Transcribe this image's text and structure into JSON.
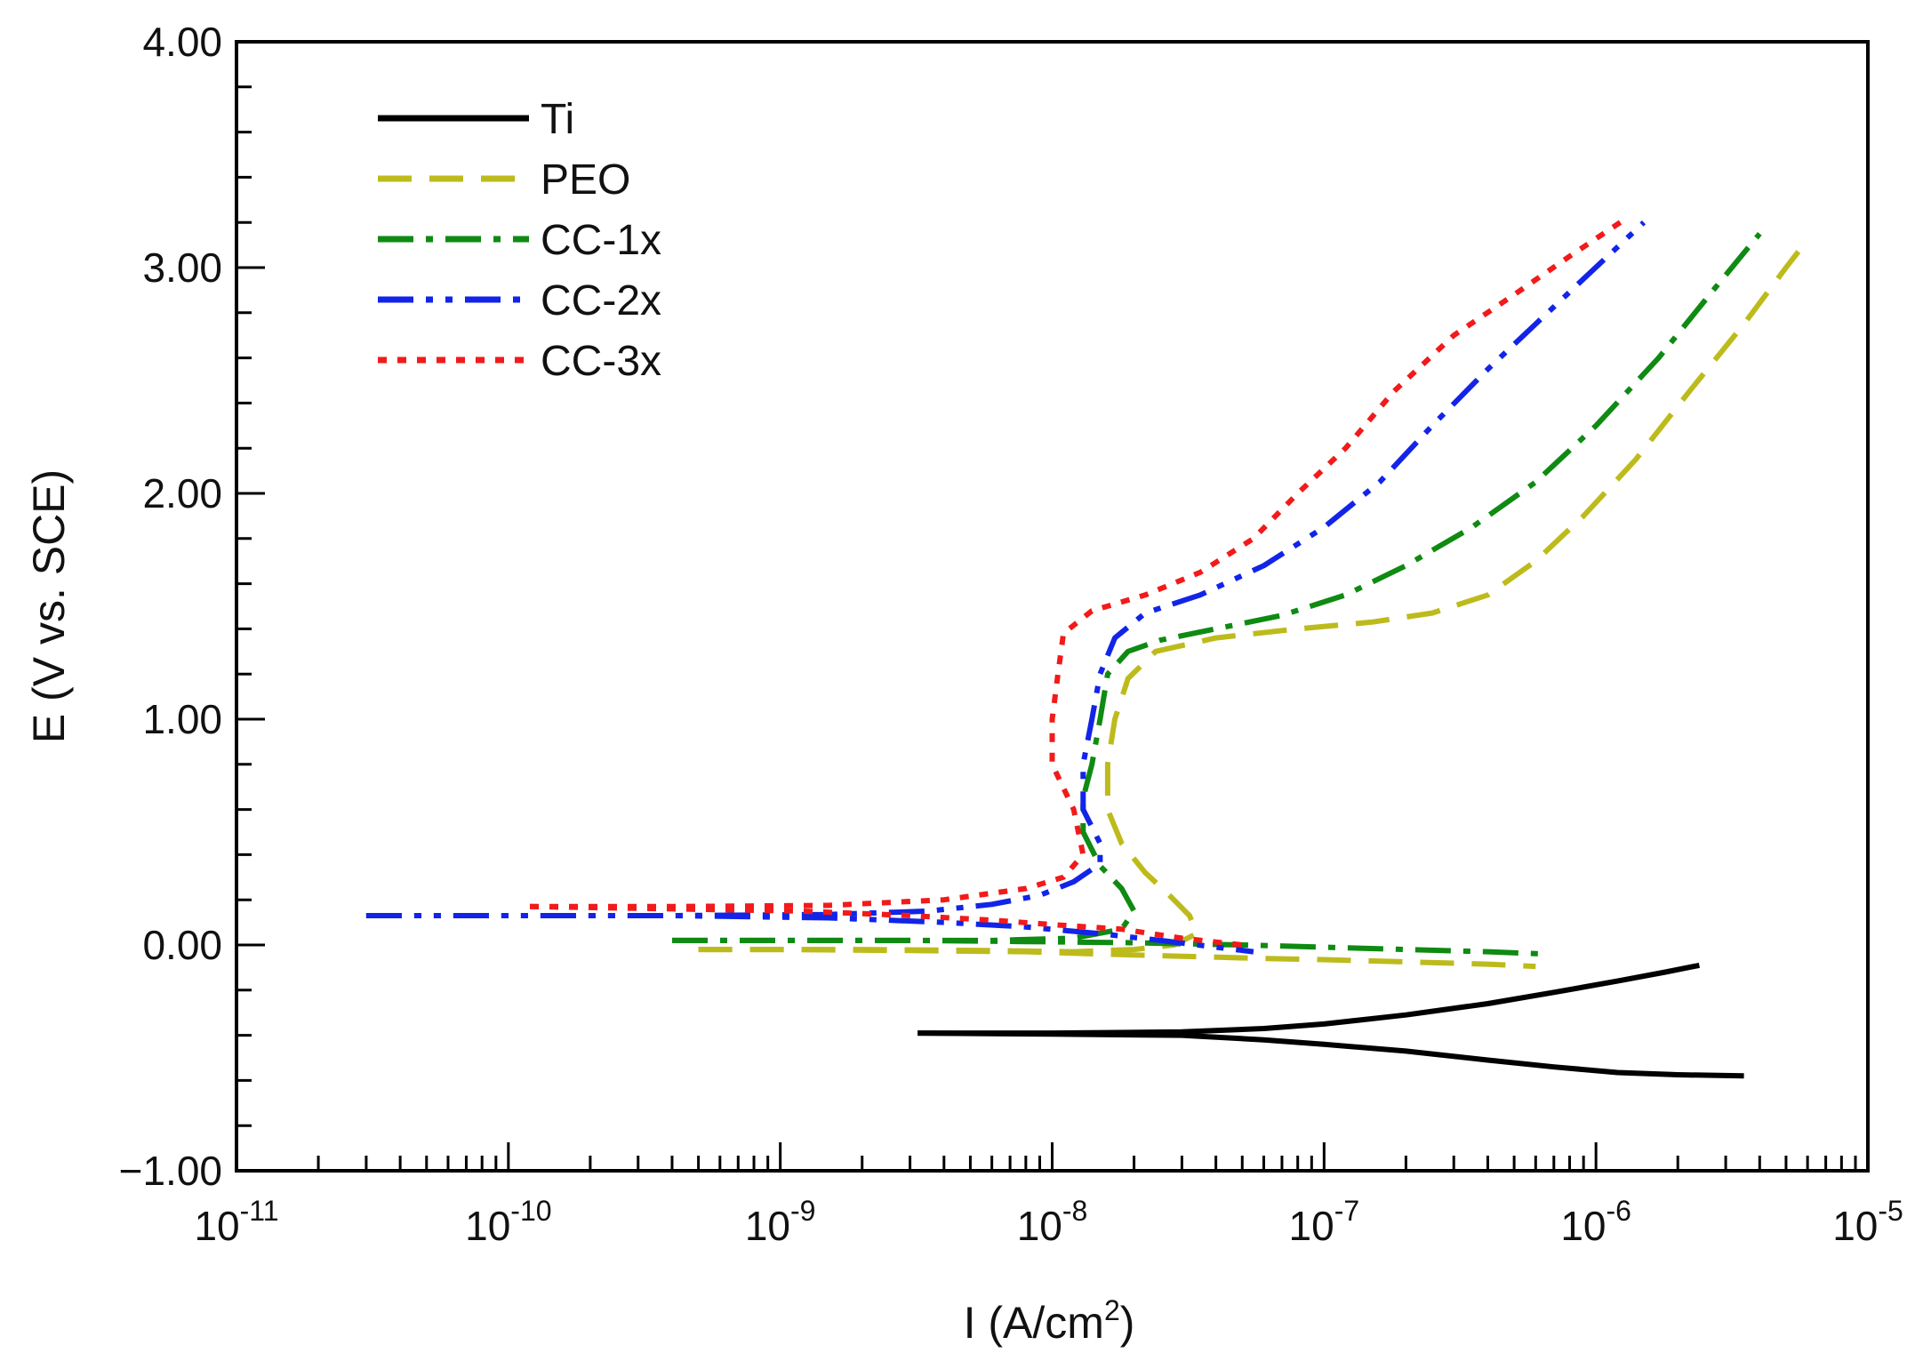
{
  "chart_data": {
    "type": "line",
    "xscale": "log",
    "xlabel": "I (A/cm",
    "xlabel_sup": "2",
    "xlabel_tail": ")",
    "ylabel": "E (V vs. SCE)",
    "xlim": [
      1e-11,
      1e-05
    ],
    "ylim": [
      -1.0,
      4.0
    ],
    "x_ticks": [
      {
        "value": 1e-11,
        "base": "10",
        "exp": "-11"
      },
      {
        "value": 1e-10,
        "base": "10",
        "exp": "-10"
      },
      {
        "value": 1e-09,
        "base": "10",
        "exp": "-9"
      },
      {
        "value": 1e-08,
        "base": "10",
        "exp": "-8"
      },
      {
        "value": 1e-07,
        "base": "10",
        "exp": "-7"
      },
      {
        "value": 1e-06,
        "base": "10",
        "exp": "-6"
      },
      {
        "value": 1e-05,
        "base": "10",
        "exp": "-5"
      }
    ],
    "y_ticks": [
      {
        "value": 4.0,
        "label": "4.00"
      },
      {
        "value": 3.0,
        "label": "3.00"
      },
      {
        "value": 2.0,
        "label": "2.00"
      },
      {
        "value": 1.0,
        "label": "1.00"
      },
      {
        "value": 0.0,
        "label": "0.00"
      },
      {
        "value": -1.0,
        "label": "−1.00"
      }
    ],
    "grid": false,
    "legend_position": "top-left",
    "series": [
      {
        "name": "Ti",
        "color": "#000000",
        "dash": "solid",
        "points": [
          [
            3.2e-09,
            -0.39
          ],
          [
            1e-08,
            -0.39
          ],
          [
            3e-08,
            -0.385
          ],
          [
            6e-08,
            -0.37
          ],
          [
            1e-07,
            -0.35
          ],
          [
            2e-07,
            -0.31
          ],
          [
            4e-07,
            -0.26
          ],
          [
            7e-07,
            -0.21
          ],
          [
            1.2e-06,
            -0.16
          ],
          [
            1.8e-06,
            -0.12
          ],
          [
            2.4e-06,
            -0.09
          ],
          [
            2.4e-06,
            -0.09
          ],
          [
            1.8e-06,
            -0.12
          ]
        ],
        "branches": [
          [
            [
              3.2e-09,
              -0.39
            ],
            [
              1e-08,
              -0.39
            ],
            [
              3e-08,
              -0.385
            ],
            [
              6e-08,
              -0.37
            ],
            [
              1e-07,
              -0.35
            ],
            [
              2e-07,
              -0.31
            ],
            [
              4e-07,
              -0.26
            ],
            [
              7e-07,
              -0.21
            ],
            [
              1.2e-06,
              -0.16
            ],
            [
              1.8e-06,
              -0.12
            ],
            [
              2.4e-06,
              -0.09
            ]
          ],
          [
            [
              3.2e-09,
              -0.39
            ],
            [
              1e-08,
              -0.395
            ],
            [
              3e-08,
              -0.4
            ],
            [
              6e-08,
              -0.42
            ],
            [
              1e-07,
              -0.44
            ],
            [
              2e-07,
              -0.47
            ],
            [
              4e-07,
              -0.51
            ],
            [
              7e-07,
              -0.54
            ],
            [
              1.2e-06,
              -0.565
            ],
            [
              2e-06,
              -0.575
            ],
            [
              3.5e-06,
              -0.58
            ]
          ]
        ]
      },
      {
        "name": "PEO",
        "color": "#bdbb1c",
        "dash": "38 20",
        "branches": [
          [
            [
              5e-10,
              -0.02
            ],
            [
              1e-09,
              -0.02
            ],
            [
              3e-09,
              -0.025
            ],
            [
              8e-09,
              -0.03
            ],
            [
              1.5e-08,
              -0.04
            ],
            [
              3e-08,
              -0.05
            ],
            [
              6e-08,
              -0.06
            ],
            [
              1e-07,
              -0.065
            ],
            [
              2e-07,
              -0.075
            ],
            [
              4e-07,
              -0.085
            ],
            [
              6e-07,
              -0.095
            ]
          ],
          [
            [
              5e-10,
              -0.02
            ],
            [
              2e-09,
              -0.02
            ],
            [
              6e-09,
              -0.025
            ],
            [
              1.2e-08,
              -0.03
            ],
            [
              2e-08,
              -0.02
            ],
            [
              2.8e-08,
              0.0
            ],
            [
              3.4e-08,
              0.05
            ],
            [
              3.2e-08,
              0.13
            ],
            [
              2.7e-08,
              0.22
            ],
            [
              2.2e-08,
              0.32
            ],
            [
              1.8e-08,
              0.45
            ],
            [
              1.6e-08,
              0.6
            ],
            [
              1.6e-08,
              0.8
            ],
            [
              1.7e-08,
              1.0
            ],
            [
              1.9e-08,
              1.18
            ],
            [
              2.4e-08,
              1.3
            ],
            [
              4e-08,
              1.36
            ],
            [
              8e-08,
              1.4
            ],
            [
              1.5e-07,
              1.43
            ],
            [
              2.5e-07,
              1.47
            ],
            [
              4e-07,
              1.55
            ],
            [
              6e-07,
              1.7
            ],
            [
              9e-07,
              1.9
            ],
            [
              1.4e-06,
              2.15
            ],
            [
              2.2e-06,
              2.45
            ],
            [
              3.5e-06,
              2.75
            ],
            [
              5e-06,
              3.0
            ],
            [
              5.8e-06,
              3.1
            ]
          ]
        ]
      },
      {
        "name": "CC-1x",
        "color": "#0f8a12",
        "dash": "40 14 8 14",
        "branches": [
          [
            [
              4e-10,
              0.02
            ],
            [
              1e-09,
              0.02
            ],
            [
              3e-09,
              0.02
            ],
            [
              8e-09,
              0.015
            ],
            [
              2e-08,
              0.01
            ],
            [
              5e-08,
              0.0
            ],
            [
              1e-07,
              -0.01
            ],
            [
              2e-07,
              -0.02
            ],
            [
              4e-07,
              -0.03
            ],
            [
              6.5e-07,
              -0.04
            ]
          ],
          [
            [
              4e-10,
              0.02
            ],
            [
              2e-09,
              0.02
            ],
            [
              6e-09,
              0.02
            ],
            [
              1.2e-08,
              0.03
            ],
            [
              1.8e-08,
              0.07
            ],
            [
              2e-08,
              0.15
            ],
            [
              1.8e-08,
              0.25
            ],
            [
              1.5e-08,
              0.35
            ],
            [
              1.3e-08,
              0.5
            ],
            [
              1.3e-08,
              0.65
            ],
            [
              1.4e-08,
              0.8
            ],
            [
              1.5e-08,
              1.0
            ],
            [
              1.6e-08,
              1.2
            ],
            [
              1.9e-08,
              1.3
            ],
            [
              2.5e-08,
              1.35
            ],
            [
              4e-08,
              1.4
            ],
            [
              7e-08,
              1.46
            ],
            [
              1.2e-07,
              1.55
            ],
            [
              2e-07,
              1.68
            ],
            [
              3.5e-07,
              1.85
            ],
            [
              6e-07,
              2.05
            ],
            [
              1e-06,
              2.3
            ],
            [
              1.7e-06,
              2.6
            ],
            [
              2.7e-06,
              2.9
            ],
            [
              4e-06,
              3.15
            ]
          ]
        ]
      },
      {
        "name": "CC-2x",
        "color": "#1224e8",
        "dash": "40 14 8 14 8 14",
        "branches": [
          [
            [
              3e-11,
              0.13
            ],
            [
              1e-10,
              0.13
            ],
            [
              4e-10,
              0.13
            ],
            [
              1.5e-09,
              0.12
            ],
            [
              4e-09,
              0.1
            ],
            [
              8e-09,
              0.08
            ],
            [
              1.5e-08,
              0.05
            ],
            [
              2.5e-08,
              0.02
            ],
            [
              4e-08,
              -0.01
            ],
            [
              5.5e-08,
              -0.03
            ]
          ],
          [
            [
              3e-11,
              0.13
            ],
            [
              1e-10,
              0.13
            ],
            [
              4e-10,
              0.13
            ],
            [
              1.5e-09,
              0.135
            ],
            [
              3.5e-09,
              0.15
            ],
            [
              6e-09,
              0.18
            ],
            [
              9e-09,
              0.22
            ],
            [
              1.2e-08,
              0.28
            ],
            [
              1.5e-08,
              0.36
            ],
            [
              1.5e-08,
              0.45
            ],
            [
              1.3e-08,
              0.6
            ],
            [
              1.3e-08,
              0.8
            ],
            [
              1.4e-08,
              1.0
            ],
            [
              1.5e-08,
              1.2
            ],
            [
              1.7e-08,
              1.36
            ],
            [
              2.2e-08,
              1.47
            ],
            [
              3.5e-08,
              1.55
            ],
            [
              6e-08,
              1.68
            ],
            [
              1e-07,
              1.85
            ],
            [
              1.6e-07,
              2.05
            ],
            [
              2.5e-07,
              2.3
            ],
            [
              4e-07,
              2.55
            ],
            [
              6e-07,
              2.75
            ],
            [
              9e-07,
              2.95
            ],
            [
              1.5e-06,
              3.2
            ]
          ]
        ]
      },
      {
        "name": "CC-3x",
        "color": "#f21a1a",
        "dash": "10 12",
        "branches": [
          [
            [
              1.2e-10,
              0.17
            ],
            [
              4e-10,
              0.16
            ],
            [
              1.2e-09,
              0.15
            ],
            [
              3e-09,
              0.13
            ],
            [
              6e-09,
              0.11
            ],
            [
              1e-08,
              0.09
            ],
            [
              1.8e-08,
              0.07
            ],
            [
              3e-08,
              0.03
            ],
            [
              5e-08,
              0.0
            ]
          ],
          [
            [
              1.2e-10,
              0.17
            ],
            [
              4e-10,
              0.17
            ],
            [
              1.5e-09,
              0.175
            ],
            [
              4e-09,
              0.2
            ],
            [
              8e-09,
              0.25
            ],
            [
              1.1e-08,
              0.3
            ],
            [
              1.3e-08,
              0.4
            ],
            [
              1.2e-08,
              0.6
            ],
            [
              1e-08,
              0.8
            ],
            [
              1e-08,
              1.0
            ],
            [
              1.05e-08,
              1.2
            ],
            [
              1.1e-08,
              1.38
            ],
            [
              1.4e-08,
              1.48
            ],
            [
              2.2e-08,
              1.55
            ],
            [
              3.5e-08,
              1.65
            ],
            [
              5.5e-08,
              1.8
            ],
            [
              8e-08,
              2.0
            ],
            [
              1.2e-07,
              2.2
            ],
            [
              1.8e-07,
              2.45
            ],
            [
              3e-07,
              2.7
            ],
            [
              5e-07,
              2.88
            ],
            [
              8e-07,
              3.05
            ],
            [
              1.3e-06,
              3.22
            ]
          ]
        ]
      }
    ]
  }
}
